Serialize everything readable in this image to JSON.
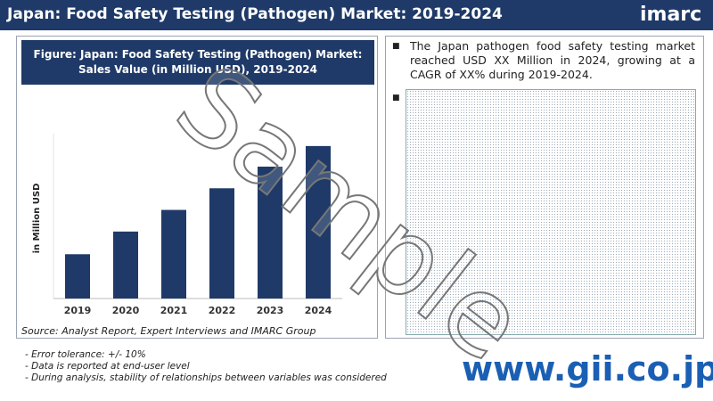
{
  "header": {
    "title": "Japan: Food Safety Testing (Pathogen) Market: 2019-2024",
    "logo": "imarc"
  },
  "chart_data": {
    "type": "bar",
    "title": "Figure: Japan: Food Safety Testing (Pathogen) Market: Sales Value (in Million USD), 2019-2024",
    "ylabel": "in Million USD",
    "categories": [
      "2019",
      "2020",
      "2021",
      "2022",
      "2023",
      "2024"
    ],
    "values": [
      43,
      65,
      86,
      107,
      128,
      148
    ],
    "color": "#1f3a68",
    "ylim": [
      0,
      160
    ]
  },
  "source": "Source: Analyst Report, Expert Interviews and IMARC Group",
  "summary": "The Japan pathogen food safety testing market reached USD XX Million in 2024, growing at a CAGR of XX% during 2019-2024.",
  "notes": [
    "-  Error tolerance: +/- 10%",
    "-  Data is reported at end-user level",
    "-  During analysis, stability of relationships between variables was considered"
  ],
  "watermark": "Sample",
  "footer_url": "www.gii.co.jp"
}
